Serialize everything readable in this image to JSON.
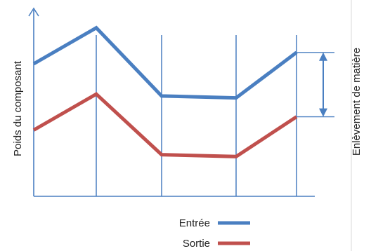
{
  "chart_data": {
    "type": "line",
    "ylabel": "Poids du composant",
    "annotation": "Enlèvement de matière",
    "grid": "vertical",
    "legend_position": "bottom-center",
    "categories": [
      "",
      "",
      "",
      "",
      ""
    ],
    "series": [
      {
        "name": "Entrée",
        "color": "#4a7fc1",
        "values": [
          0.7,
          0.89,
          0.53,
          0.52,
          0.76
        ]
      },
      {
        "name": "Sortie",
        "color": "#c0504d",
        "values": [
          0.35,
          0.54,
          0.22,
          0.21,
          0.42
        ]
      }
    ],
    "ylim": [
      0,
      1
    ]
  }
}
